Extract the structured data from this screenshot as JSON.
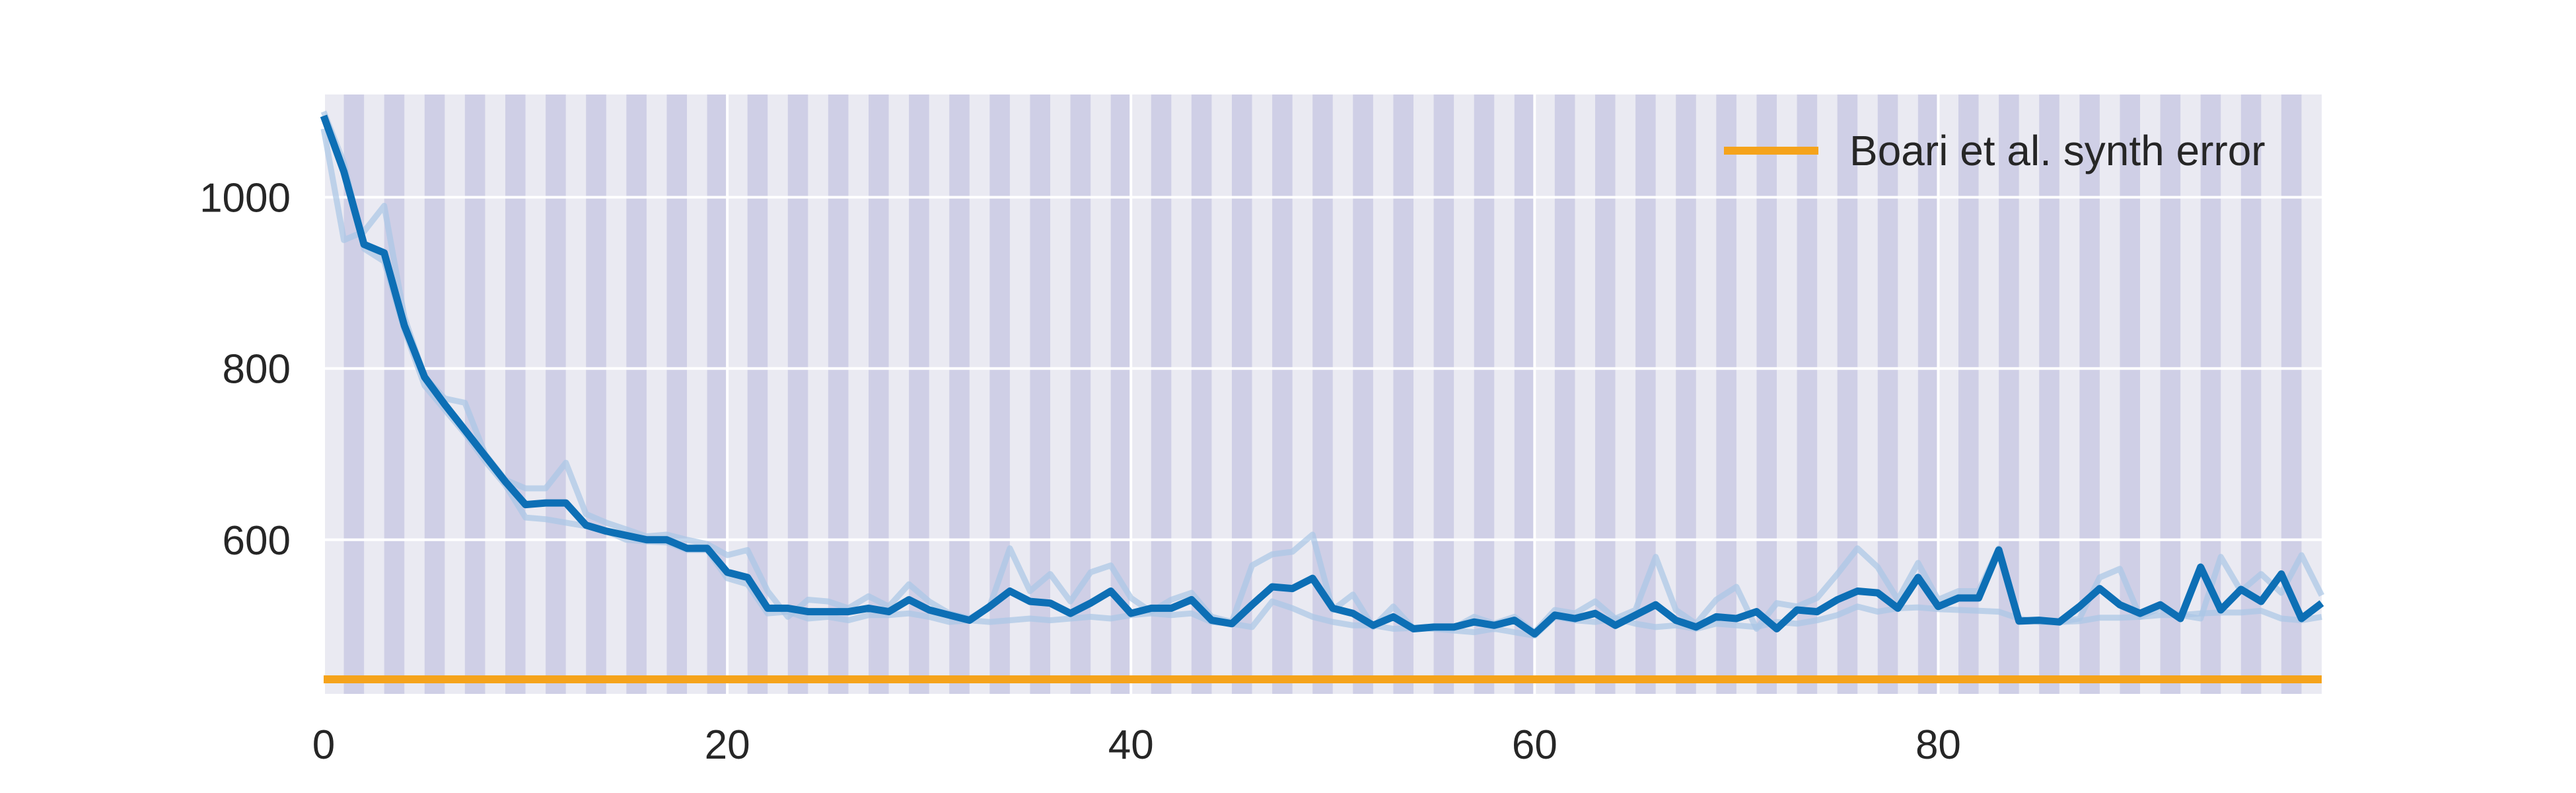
{
  "chart_data": {
    "type": "line",
    "title": "",
    "xlabel": "",
    "ylabel": "",
    "xlim": [
      0,
      99
    ],
    "ylim": [
      420,
      1120
    ],
    "x_ticks": [
      0,
      20,
      40,
      60,
      80
    ],
    "x_tick_labels": [
      "0",
      "20",
      "40",
      "60",
      "80"
    ],
    "y_ticks": [
      600,
      800,
      1000
    ],
    "y_tick_labels": [
      "600",
      "800",
      "1000"
    ],
    "grid": true,
    "legend_placement": "top-right",
    "background_color": "#eaeaf2",
    "grid_color": "#ffffff",
    "stripe_color": "#cfcfe6",
    "stripes": "alternating vertical bands of width 1 x-unit, starting at x=1",
    "series": [
      {
        "role": "faint-run-1",
        "color": "#a9c6e6",
        "x": [
          0,
          1,
          2,
          3,
          4,
          5,
          6,
          7,
          8,
          9,
          10,
          11,
          12,
          13,
          14,
          15,
          16,
          17,
          18,
          19,
          20,
          21,
          22,
          23,
          24,
          25,
          26,
          27,
          28,
          29,
          30,
          31,
          32,
          33,
          34,
          35,
          36,
          37,
          38,
          39,
          40,
          41,
          42,
          43,
          44,
          45,
          46,
          47,
          48,
          49,
          50,
          51,
          52,
          53,
          54,
          55,
          56,
          57,
          58,
          59,
          60,
          61,
          62,
          63,
          64,
          65,
          66,
          67,
          68,
          69,
          70,
          71,
          72,
          73,
          74,
          75,
          76,
          77,
          78,
          79,
          80,
          81,
          82,
          83,
          84,
          85,
          86,
          87,
          88,
          89,
          90,
          91,
          92,
          93,
          94,
          95,
          96,
          97,
          98,
          99
        ],
        "y": [
          1080,
          950,
          960,
          990,
          860,
          790,
          765,
          760,
          700,
          670,
          660,
          660,
          690,
          630,
          620,
          612,
          604,
          606,
          600,
          595,
          582,
          588,
          540,
          510,
          530,
          528,
          520,
          534,
          522,
          548,
          528,
          514,
          508,
          522,
          590,
          540,
          560,
          528,
          562,
          570,
          532,
          516,
          530,
          538,
          510,
          504,
          570,
          583,
          586,
          606,
          518,
          536,
          498,
          522,
          496,
          497,
          497,
          510,
          502,
          510,
          492,
          518,
          514,
          528,
          508,
          518,
          580,
          518,
          502,
          530,
          545,
          496,
          526,
          522,
          532,
          560,
          590,
          568,
          530,
          573,
          530,
          540,
          540,
          590,
          506,
          507,
          504,
          508,
          556,
          566,
          510,
          520,
          512,
          508,
          580,
          540,
          560,
          538,
          582,
          535
        ]
      },
      {
        "role": "faint-run-2",
        "color": "#a9c6e6",
        "x": [
          0,
          1,
          2,
          3,
          4,
          5,
          6,
          7,
          8,
          9,
          10,
          11,
          12,
          13,
          14,
          15,
          16,
          17,
          18,
          19,
          20,
          21,
          22,
          23,
          24,
          25,
          26,
          27,
          28,
          29,
          30,
          31,
          32,
          33,
          34,
          35,
          36,
          37,
          38,
          39,
          40,
          41,
          42,
          43,
          44,
          45,
          46,
          47,
          48,
          49,
          50,
          51,
          52,
          53,
          54,
          55,
          56,
          57,
          58,
          59,
          60,
          61,
          62,
          63,
          64,
          65,
          66,
          67,
          68,
          69,
          70,
          71,
          72,
          73,
          74,
          75,
          76,
          77,
          78,
          79,
          80,
          81,
          82,
          83,
          84,
          85,
          86,
          87,
          88,
          89,
          90,
          91,
          92,
          93,
          94,
          95,
          96,
          97,
          98,
          99
        ],
        "y": [
          1100,
          1040,
          940,
          925,
          845,
          780,
          752,
          724,
          692,
          664,
          626,
          624,
          620,
          616,
          610,
          600,
          598,
          597,
          588,
          588,
          555,
          548,
          514,
          516,
          508,
          510,
          506,
          512,
          512,
          514,
          510,
          504,
          506,
          504,
          506,
          508,
          506,
          508,
          510,
          508,
          512,
          514,
          512,
          514,
          504,
          502,
          498,
          528,
          520,
          510,
          504,
          500,
          500,
          496,
          497,
          496,
          494,
          492,
          496,
          492,
          488,
          510,
          506,
          504,
          508,
          502,
          498,
          500,
          496,
          502,
          500,
          498,
          504,
          502,
          506,
          512,
          522,
          516,
          520,
          521,
          519,
          518,
          517,
          516,
          508,
          504,
          504,
          505,
          509,
          509,
          510,
          512,
          512,
          514,
          515,
          515,
          517,
          508,
          506,
          510
        ]
      },
      {
        "role": "main-run",
        "color": "#0d6fb5",
        "x": [
          0,
          1,
          2,
          3,
          4,
          5,
          6,
          7,
          8,
          9,
          10,
          11,
          12,
          13,
          14,
          15,
          16,
          17,
          18,
          19,
          20,
          21,
          22,
          23,
          24,
          25,
          26,
          27,
          28,
          29,
          30,
          31,
          32,
          33,
          34,
          35,
          36,
          37,
          38,
          39,
          40,
          41,
          42,
          43,
          44,
          45,
          46,
          47,
          48,
          49,
          50,
          51,
          52,
          53,
          54,
          55,
          56,
          57,
          58,
          59,
          60,
          61,
          62,
          63,
          64,
          65,
          66,
          67,
          68,
          69,
          70,
          71,
          72,
          73,
          74,
          75,
          76,
          77,
          78,
          79,
          80,
          81,
          82,
          83,
          84,
          85,
          86,
          87,
          88,
          89,
          90,
          91,
          92,
          93,
          94,
          95,
          96,
          97,
          98,
          99
        ],
        "y": [
          1095,
          1030,
          945,
          935,
          850,
          790,
          758,
          728,
          698,
          668,
          641,
          643,
          643,
          617,
          610,
          605,
          600,
          600,
          590,
          590,
          562,
          556,
          520,
          520,
          516,
          516,
          516,
          520,
          516,
          530,
          518,
          512,
          506,
          522,
          540,
          528,
          526,
          514,
          526,
          540,
          514,
          520,
          520,
          530,
          506,
          502,
          524,
          545,
          543,
          555,
          520,
          514,
          500,
          510,
          496,
          498,
          498,
          504,
          500,
          506,
          490,
          512,
          508,
          514,
          500,
          512,
          524,
          506,
          498,
          510,
          508,
          516,
          496,
          518,
          516,
          530,
          540,
          538,
          520,
          556,
          522,
          532,
          532,
          588,
          505,
          506,
          504,
          522,
          543,
          524,
          514,
          524,
          508,
          568,
          518,
          542,
          528,
          560,
          508,
          526
        ]
      },
      {
        "name": "Boari et al. synth error",
        "color": "#f5a31b",
        "x": [
          0,
          99
        ],
        "y": [
          437,
          437
        ]
      }
    ]
  }
}
